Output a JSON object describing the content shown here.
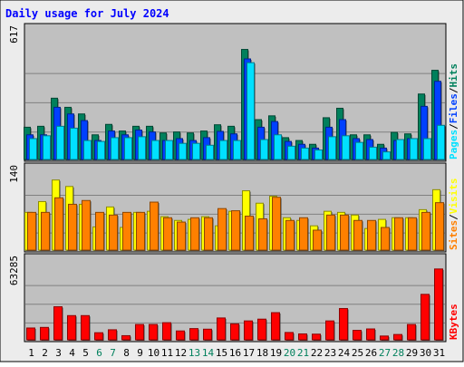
{
  "title": "Daily usage for July 2024",
  "colors": {
    "background": "#ececec",
    "panel": "#c0c0c0",
    "title": "#0000ff",
    "hits": "#00805c",
    "files": "#0040ff",
    "pages": "#00e0ff",
    "visits": "#ffff00",
    "sites": "#ff8000",
    "kbytes": "#ff0000",
    "weekend": "#00805c",
    "weekday": "#000000"
  },
  "days": [
    "1",
    "2",
    "3",
    "4",
    "5",
    "6",
    "7",
    "8",
    "9",
    "10",
    "11",
    "12",
    "13",
    "14",
    "15",
    "16",
    "17",
    "18",
    "19",
    "20",
    "21",
    "22",
    "23",
    "24",
    "25",
    "26",
    "27",
    "28",
    "29",
    "30",
    "31"
  ],
  "weekend_days": [
    "6",
    "7",
    "13",
    "14",
    "20",
    "21",
    "27",
    "28"
  ],
  "chart_data": [
    {
      "type": "bar",
      "scale_label": "617",
      "ylim": [
        0,
        617
      ],
      "legend": [
        "Pages",
        "/",
        "Files",
        "/",
        "Hits"
      ],
      "series": [
        {
          "name": "Hits",
          "values": [
            170,
            175,
            323,
            275,
            240,
            130,
            185,
            150,
            175,
            175,
            140,
            145,
            140,
            150,
            183,
            175,
            580,
            210,
            230,
            115,
            100,
            80,
            220,
            270,
            130,
            130,
            80,
            143,
            135,
            345,
            470
          ]
        },
        {
          "name": "Files",
          "values": [
            130,
            130,
            275,
            240,
            205,
            100,
            150,
            130,
            155,
            145,
            100,
            110,
            100,
            115,
            148,
            135,
            530,
            170,
            200,
            95,
            80,
            60,
            170,
            210,
            110,
            105,
            60,
            100,
            110,
            280,
            412
          ]
        },
        {
          "name": "Pages",
          "values": [
            110,
            125,
            175,
            165,
            100,
            95,
            115,
            115,
            120,
            100,
            100,
            85,
            85,
            75,
            100,
            100,
            510,
            105,
            130,
            70,
            60,
            50,
            120,
            125,
            90,
            65,
            40,
            105,
            110,
            110,
            180
          ]
        }
      ]
    },
    {
      "type": "bar",
      "scale_label": "140",
      "ylim": [
        0,
        140
      ],
      "legend": [
        "Sites",
        "/",
        "Visits"
      ],
      "series": [
        {
          "name": "Visits",
          "values": [
            70,
            90,
            130,
            118,
            85,
            43,
            80,
            42,
            70,
            72,
            62,
            55,
            57,
            62,
            45,
            72,
            110,
            87,
            100,
            60,
            55,
            45,
            72,
            70,
            65,
            40,
            57,
            60,
            60,
            75,
            112
          ]
        },
        {
          "name": "Sites",
          "values": [
            70,
            70,
            97,
            85,
            92,
            70,
            65,
            70,
            70,
            89,
            60,
            52,
            60,
            60,
            77,
            73,
            63,
            58,
            98,
            55,
            60,
            37,
            65,
            65,
            55,
            55,
            42,
            60,
            60,
            70,
            88
          ]
        }
      ]
    },
    {
      "type": "bar",
      "scale_label": "63285",
      "ylim": [
        0,
        63285
      ],
      "legend": [
        "KBytes"
      ],
      "series": [
        {
          "name": "KBytes",
          "values": [
            10000,
            10500,
            28000,
            20500,
            20500,
            6000,
            8500,
            3500,
            13000,
            13000,
            14500,
            7500,
            9500,
            9000,
            18500,
            13500,
            16000,
            17500,
            23000,
            6200,
            5000,
            4800,
            16000,
            26500,
            8000,
            9200,
            3200,
            4500,
            13000,
            38500,
            60000
          ]
        }
      ]
    }
  ]
}
